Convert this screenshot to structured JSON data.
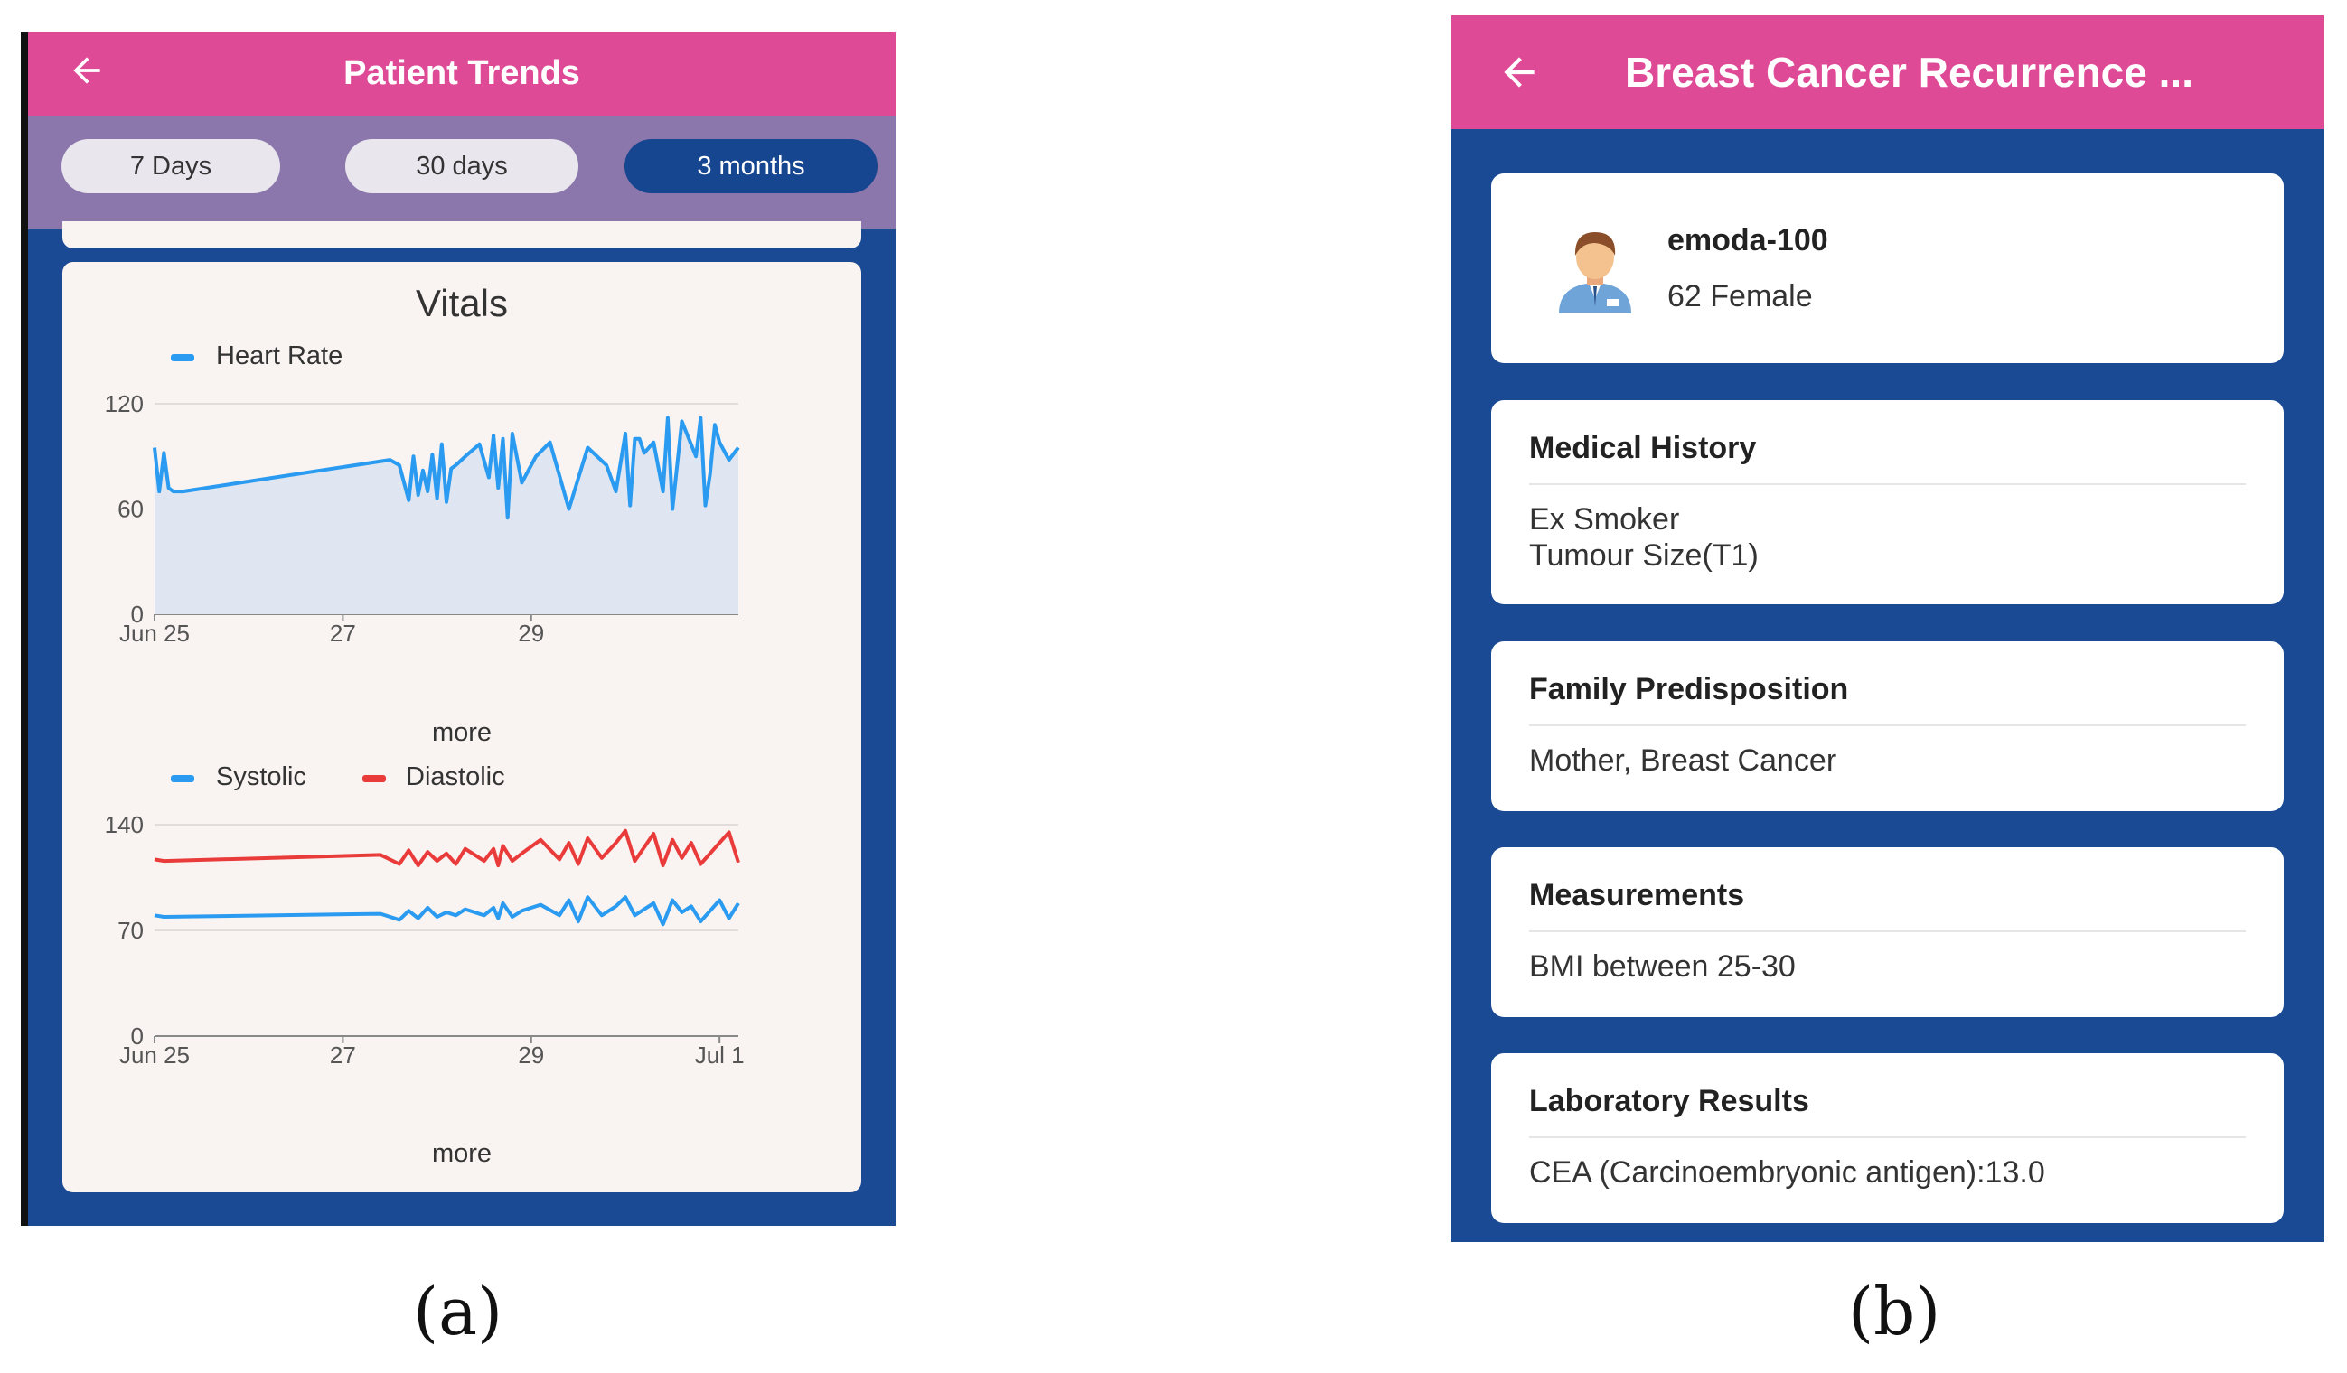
{
  "panel_a": {
    "header": {
      "title": "Patient Trends",
      "back_icon": "arrow-left-icon"
    },
    "tabs": [
      {
        "label": "7 Days",
        "active": false
      },
      {
        "label": "30 days",
        "active": false
      },
      {
        "label": "3 months",
        "active": true
      }
    ],
    "card_title": "Vitals",
    "more_label": "more",
    "colors": {
      "header": "#de4a96",
      "tabbar": "#8b77ac",
      "background": "#1a4a94",
      "active_tab": "#16468f",
      "blue": "#2a9bf0",
      "red": "#ea3b3b"
    }
  },
  "panel_b": {
    "header": {
      "title": "Breast Cancer Recurrence ...",
      "back_icon": "arrow-left-icon"
    },
    "patient": {
      "id": "emoda-100",
      "demographics": "62 Female",
      "avatar_icon": "person-avatar-icon"
    },
    "sections": [
      {
        "title": "Medical History",
        "lines": [
          "Ex Smoker",
          "Tumour Size(T1)"
        ]
      },
      {
        "title": "Family Predisposition",
        "lines": [
          "Mother, Breast Cancer"
        ]
      },
      {
        "title": "Measurements",
        "lines": [
          "BMI between 25-30"
        ]
      },
      {
        "title": "Laboratory Results",
        "lines": [
          "CEA (Carcinoembryonic antigen):13.0"
        ]
      }
    ]
  },
  "captions": {
    "a": "(a)",
    "b": "(b)"
  },
  "chart_data": [
    {
      "type": "area",
      "title": "Vitals",
      "series": [
        {
          "name": "Heart Rate",
          "color": "#2a9bf0",
          "x": [
            0,
            0.05,
            0.1,
            0.15,
            0.2,
            0.3,
            2.5,
            2.6,
            2.7,
            2.75,
            2.8,
            2.85,
            2.9,
            2.95,
            3.0,
            3.05,
            3.1,
            3.15,
            3.2,
            3.3,
            3.45,
            3.55,
            3.6,
            3.65,
            3.7,
            3.75,
            3.8,
            3.9,
            4.05,
            4.2,
            4.4,
            4.6,
            4.8,
            4.9,
            5.0,
            5.05,
            5.1,
            5.15,
            5.2,
            5.3,
            5.4,
            5.45,
            5.5,
            5.6,
            5.75,
            5.8,
            5.85,
            5.9,
            5.95,
            6.0,
            6.1,
            6.2
          ],
          "values": [
            95,
            70,
            92,
            72,
            70,
            70,
            88,
            85,
            65,
            90,
            68,
            82,
            70,
            91,
            66,
            97,
            64,
            83,
            85,
            90,
            97,
            78,
            102,
            72,
            100,
            55,
            103,
            75,
            90,
            98,
            60,
            95,
            85,
            70,
            103,
            62,
            100,
            100,
            92,
            98,
            70,
            112,
            60,
            110,
            90,
            112,
            62,
            80,
            108,
            98,
            88,
            95
          ]
        }
      ],
      "xaxis": {
        "ticks": [
          "Jun 25",
          "27",
          "29"
        ],
        "tick_values": [
          0,
          2,
          4
        ],
        "range": [
          0,
          6.2
        ]
      },
      "yaxis": {
        "ticks": [
          0,
          60,
          120
        ],
        "range": [
          0,
          120
        ]
      },
      "grid": true,
      "legend": "top-left"
    },
    {
      "type": "line",
      "series": [
        {
          "name": "Systolic",
          "color": "#2a9bf0",
          "x": [
            0,
            0.1,
            2.4,
            2.6,
            2.7,
            2.8,
            2.9,
            3.0,
            3.1,
            3.2,
            3.3,
            3.5,
            3.6,
            3.65,
            3.7,
            3.8,
            3.9,
            4.1,
            4.3,
            4.4,
            4.5,
            4.6,
            4.75,
            4.9,
            5.0,
            5.1,
            5.3,
            5.4,
            5.5,
            5.6,
            5.7,
            5.8,
            6.0,
            6.1,
            6.2
          ],
          "values": [
            80,
            79,
            81,
            77,
            83,
            78,
            85,
            79,
            82,
            80,
            84,
            80,
            85,
            78,
            88,
            79,
            83,
            87,
            80,
            90,
            76,
            92,
            80,
            86,
            92,
            80,
            88,
            74,
            90,
            82,
            86,
            76,
            90,
            78,
            88
          ]
        },
        {
          "name": "Diastolic",
          "color": "#ea3b3b",
          "x": [
            0,
            0.1,
            2.4,
            2.6,
            2.7,
            2.8,
            2.9,
            3.0,
            3.1,
            3.2,
            3.3,
            3.5,
            3.6,
            3.65,
            3.7,
            3.8,
            3.9,
            4.1,
            4.3,
            4.4,
            4.5,
            4.6,
            4.75,
            4.9,
            5.0,
            5.1,
            5.3,
            5.4,
            5.5,
            5.6,
            5.7,
            5.8,
            6.0,
            6.1,
            6.2
          ],
          "values": [
            117,
            116,
            120,
            114,
            123,
            113,
            122,
            116,
            121,
            114,
            124,
            116,
            124,
            113,
            126,
            116,
            121,
            130,
            117,
            128,
            114,
            131,
            118,
            128,
            136,
            116,
            134,
            113,
            130,
            118,
            128,
            114,
            128,
            135,
            115
          ]
        }
      ],
      "xaxis": {
        "ticks": [
          "Jun 25",
          "27",
          "29",
          "Jul 1"
        ],
        "tick_values": [
          0,
          2,
          4,
          6
        ],
        "range": [
          0,
          6.2
        ]
      },
      "yaxis": {
        "ticks": [
          0,
          70,
          140
        ],
        "range": [
          0,
          140
        ]
      },
      "grid": true,
      "legend": "top-left"
    }
  ]
}
